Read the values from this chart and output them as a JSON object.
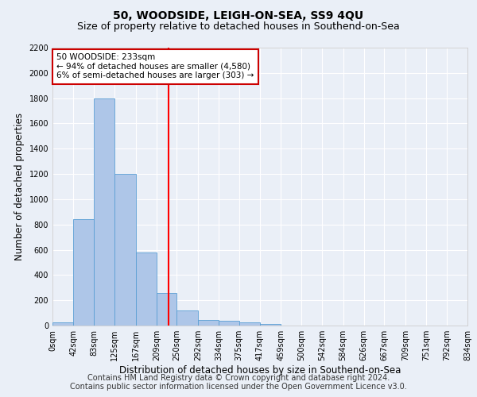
{
  "title": "50, WOODSIDE, LEIGH-ON-SEA, SS9 4QU",
  "subtitle": "Size of property relative to detached houses in Southend-on-Sea",
  "xlabel": "Distribution of detached houses by size in Southend-on-Sea",
  "ylabel": "Number of detached properties",
  "bar_values": [
    25,
    840,
    1800,
    1200,
    580,
    255,
    120,
    45,
    40,
    25,
    15,
    0,
    0,
    0,
    0,
    0,
    0,
    0,
    0,
    0
  ],
  "bin_edges": [
    0,
    42,
    83,
    125,
    167,
    209,
    250,
    292,
    334,
    375,
    417,
    459,
    500,
    542,
    584,
    626,
    667,
    709,
    751,
    792,
    834
  ],
  "tick_labels": [
    "0sqm",
    "42sqm",
    "83sqm",
    "125sqm",
    "167sqm",
    "209sqm",
    "250sqm",
    "292sqm",
    "334sqm",
    "375sqm",
    "417sqm",
    "459sqm",
    "500sqm",
    "542sqm",
    "584sqm",
    "626sqm",
    "667sqm",
    "709sqm",
    "751sqm",
    "792sqm",
    "834sqm"
  ],
  "bar_color": "#aec6e8",
  "bar_edge_color": "#5a9fd4",
  "red_line_x": 233,
  "annotation_line1": "50 WOODSIDE: 233sqm",
  "annotation_line2": "← 94% of detached houses are smaller (4,580)",
  "annotation_line3": "6% of semi-detached houses are larger (303) →",
  "annotation_box_color": "#ffffff",
  "annotation_border_color": "#cc0000",
  "ylim": [
    0,
    2200
  ],
  "yticks": [
    0,
    200,
    400,
    600,
    800,
    1000,
    1200,
    1400,
    1600,
    1800,
    2000,
    2200
  ],
  "footer_line1": "Contains HM Land Registry data © Crown copyright and database right 2024.",
  "footer_line2": "Contains public sector information licensed under the Open Government Licence v3.0.",
  "background_color": "#eaeff7",
  "plot_bg_color": "#eaeff7",
  "grid_color": "#ffffff",
  "title_fontsize": 10,
  "subtitle_fontsize": 9,
  "axis_label_fontsize": 8.5,
  "tick_fontsize": 7,
  "footer_fontsize": 7,
  "annotation_fontsize": 7.5
}
